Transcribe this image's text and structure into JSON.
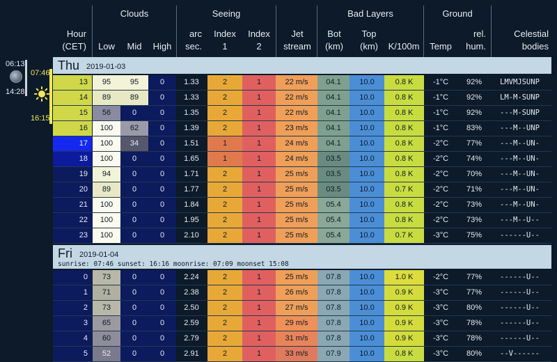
{
  "header": {
    "groups": {
      "clouds": "Clouds",
      "seeing": "Seeing",
      "bad_layers": "Bad Layers",
      "ground": "Ground"
    },
    "columns": {
      "hour": "Hour\n(CET)",
      "low": "Low",
      "mid": "Mid",
      "high": "High",
      "arcsec": "arc\nsec.",
      "index1": "Index\n1",
      "index2": "Index\n2",
      "jet": "Jet\nstream",
      "bot": "Bot\n(km)",
      "top": "Top\n(km)",
      "k100": "K/100m",
      "temp": "Temp",
      "hum": "rel.\nhum.",
      "celestial": "Celestial\nbodies"
    }
  },
  "sidebar": {
    "moonrise": "06:13",
    "moonset": "14:28",
    "sunrise": "07:46",
    "sunset": "16:15"
  },
  "days": [
    {
      "name": "Thu",
      "date": "2019-01-03",
      "info": "",
      "rows": [
        {
          "hour": "13",
          "low": "95",
          "mid": "95",
          "high": "0",
          "arcsec": "1.33",
          "idx1": "2",
          "idx2": "1",
          "jet": "22 m/s",
          "bot": "04.1",
          "top": "10.0",
          "k": "0.8 K",
          "temp": "-1°C",
          "hum": "92%",
          "cel": "LMVMJSUNP",
          "hourbg": "#d0d84a",
          "hourfg": "#0c1a29",
          "lowbg": "#f3f3d8",
          "midbg": "#f3f3d8",
          "highbg": "#0c1a5e",
          "arcbg": "#0c1a29",
          "i1bg": "#e8a838",
          "i2bg": "#e06060",
          "jetbg": "#ef9f58",
          "botbg": "#7fa08e",
          "topbg": "#4b8ed6",
          "kbg": "#c8dc40"
        },
        {
          "hour": "14",
          "low": "89",
          "mid": "89",
          "high": "0",
          "arcsec": "1.33",
          "idx1": "2",
          "idx2": "1",
          "jet": "22 m/s",
          "bot": "04.1",
          "top": "10.0",
          "k": "0.8 K",
          "temp": "-1°C",
          "hum": "92%",
          "cel": "LM-M-SUNP",
          "hourbg": "#d0d84a",
          "hourfg": "#0c1a29",
          "lowbg": "#e8e8c4",
          "midbg": "#e8e8c4",
          "highbg": "#0c1a5e",
          "arcbg": "#0c1a29",
          "i1bg": "#e8a838",
          "i2bg": "#e06060",
          "jetbg": "#ef9f58",
          "botbg": "#7fa08e",
          "topbg": "#4b8ed6",
          "kbg": "#c8dc40"
        },
        {
          "hour": "15",
          "low": "56",
          "mid": "0",
          "high": "0",
          "arcsec": "1.35",
          "idx1": "2",
          "idx2": "1",
          "jet": "22 m/s",
          "bot": "04.1",
          "top": "10.0",
          "k": "0.8 K",
          "temp": "-1°C",
          "hum": "92%",
          "cel": "---M-SUNP",
          "hourbg": "#d0d84a",
          "hourfg": "#0c1a29",
          "lowbg": "#8a8aa0",
          "midbg": "#0c1a5e",
          "highbg": "#0c1a5e",
          "arcbg": "#0c1a29",
          "i1bg": "#e8a838",
          "i2bg": "#e06060",
          "jetbg": "#ef9f58",
          "botbg": "#7fa08e",
          "topbg": "#4b8ed6",
          "kbg": "#c8dc40"
        },
        {
          "hour": "16",
          "low": "100",
          "mid": "62",
          "high": "0",
          "arcsec": "1.39",
          "idx1": "2",
          "idx2": "1",
          "jet": "23 m/s",
          "bot": "04.1",
          "top": "10.0",
          "k": "0.8 K",
          "temp": "-1°C",
          "hum": "83%",
          "cel": "---M--UNP",
          "hourbg": "#d0d84a",
          "hourfg": "#0c1a29",
          "lowbg": "#fafaee",
          "midbg": "#9a9aa8",
          "highbg": "#0c1a5e",
          "arcbg": "#0c1a29",
          "i1bg": "#e8a838",
          "i2bg": "#e06060",
          "jetbg": "#ef9f58",
          "botbg": "#7fa08e",
          "topbg": "#4b8ed6",
          "kbg": "#c8dc40"
        },
        {
          "hour": "17",
          "low": "100",
          "mid": "34",
          "high": "0",
          "arcsec": "1.51",
          "idx1": "1",
          "idx2": "1",
          "jet": "24 m/s",
          "bot": "04.1",
          "top": "10.0",
          "k": "0.8 K",
          "temp": "-2°C",
          "hum": "77%",
          "cel": "---M--UN-",
          "hourbg": "#1428f0",
          "hourfg": "#e6ecf2",
          "lowbg": "#fafaee",
          "midbg": "#56566e",
          "highbg": "#0c1a5e",
          "arcbg": "#0c1a29",
          "i1bg": "#e07a4c",
          "i2bg": "#e06060",
          "jetbg": "#ef9f58",
          "botbg": "#7fa08e",
          "topbg": "#4b8ed6",
          "kbg": "#c8dc40"
        },
        {
          "hour": "18",
          "low": "100",
          "mid": "0",
          "high": "0",
          "arcsec": "1.65",
          "idx1": "1",
          "idx2": "1",
          "jet": "24 m/s",
          "bot": "03.5",
          "top": "10.0",
          "k": "0.8 K",
          "temp": "-2°C",
          "hum": "74%",
          "cel": "---M--UN-",
          "hourbg": "#0c1a9c",
          "hourfg": "#e6ecf2",
          "lowbg": "#fafaee",
          "midbg": "#0c1a5e",
          "highbg": "#0c1a5e",
          "arcbg": "#0c1a29",
          "i1bg": "#e07a4c",
          "i2bg": "#e06060",
          "jetbg": "#ef9f58",
          "botbg": "#6a8c80",
          "topbg": "#4b8ed6",
          "kbg": "#c8dc40"
        },
        {
          "hour": "19",
          "low": "94",
          "mid": "0",
          "high": "0",
          "arcsec": "1.71",
          "idx1": "2",
          "idx2": "1",
          "jet": "25 m/s",
          "bot": "03.5",
          "top": "10.0",
          "k": "0.8 K",
          "temp": "-2°C",
          "hum": "70%",
          "cel": "---M--UN-",
          "hourbg": "#0c1a5e",
          "hourfg": "#e6ecf2",
          "lowbg": "#f3f3d8",
          "midbg": "#0c1a5e",
          "highbg": "#0c1a5e",
          "arcbg": "#0c1a29",
          "i1bg": "#e8a838",
          "i2bg": "#e06060",
          "jetbg": "#ef9f58",
          "botbg": "#6a8c80",
          "topbg": "#4b8ed6",
          "kbg": "#c8dc40"
        },
        {
          "hour": "20",
          "low": "89",
          "mid": "0",
          "high": "0",
          "arcsec": "1.77",
          "idx1": "2",
          "idx2": "1",
          "jet": "25 m/s",
          "bot": "03.5",
          "top": "10.0",
          "k": "0.7 K",
          "temp": "-2°C",
          "hum": "71%",
          "cel": "---M--UN-",
          "hourbg": "#0c1a5e",
          "hourfg": "#e6ecf2",
          "lowbg": "#e8e8c4",
          "midbg": "#0c1a5e",
          "highbg": "#0c1a5e",
          "arcbg": "#0c1a29",
          "i1bg": "#e8a838",
          "i2bg": "#e06060",
          "jetbg": "#ef9f58",
          "botbg": "#6a8c80",
          "topbg": "#4b8ed6",
          "kbg": "#c8dc40"
        },
        {
          "hour": "21",
          "low": "100",
          "mid": "0",
          "high": "0",
          "arcsec": "1.84",
          "idx1": "2",
          "idx2": "1",
          "jet": "25 m/s",
          "bot": "05.4",
          "top": "10.0",
          "k": "0.8 K",
          "temp": "-2°C",
          "hum": "73%",
          "cel": "---M--UN-",
          "hourbg": "#0c1a5e",
          "hourfg": "#e6ecf2",
          "lowbg": "#fafaee",
          "midbg": "#0c1a5e",
          "highbg": "#0c1a5e",
          "arcbg": "#0c1a29",
          "i1bg": "#e8a838",
          "i2bg": "#e06060",
          "jetbg": "#ef9f58",
          "botbg": "#8aa898",
          "topbg": "#4b8ed6",
          "kbg": "#c8dc40"
        },
        {
          "hour": "22",
          "low": "100",
          "mid": "0",
          "high": "0",
          "arcsec": "1.95",
          "idx1": "2",
          "idx2": "1",
          "jet": "25 m/s",
          "bot": "05.4",
          "top": "10.0",
          "k": "0.8 K",
          "temp": "-2°C",
          "hum": "73%",
          "cel": "---M--U--",
          "hourbg": "#0c1a5e",
          "hourfg": "#e6ecf2",
          "lowbg": "#fafaee",
          "midbg": "#0c1a5e",
          "highbg": "#0c1a5e",
          "arcbg": "#0c1a29",
          "i1bg": "#e8a838",
          "i2bg": "#e06060",
          "jetbg": "#ef9f58",
          "botbg": "#8aa898",
          "topbg": "#4b8ed6",
          "kbg": "#c8dc40"
        },
        {
          "hour": "23",
          "low": "100",
          "mid": "0",
          "high": "0",
          "arcsec": "2.10",
          "idx1": "2",
          "idx2": "1",
          "jet": "25 m/s",
          "bot": "05.4",
          "top": "10.0",
          "k": "0.7 K",
          "temp": "-3°C",
          "hum": "75%",
          "cel": "------U--",
          "hourbg": "#0c1a5e",
          "hourfg": "#e6ecf2",
          "lowbg": "#fafaee",
          "midbg": "#0c1a5e",
          "highbg": "#0c1a5e",
          "arcbg": "#0c1a29",
          "i1bg": "#e8a838",
          "i2bg": "#e06060",
          "jetbg": "#ef9f58",
          "botbg": "#8aa898",
          "topbg": "#4b8ed6",
          "kbg": "#c8dc40"
        }
      ]
    },
    {
      "name": "Fri",
      "date": "2019-01-04",
      "info": "sunrise: 07:46 sunset: 16:16 moonrise: 07:09 moonset 15:08",
      "rows": [
        {
          "hour": "0",
          "low": "73",
          "mid": "0",
          "high": "0",
          "arcsec": "2.24",
          "idx1": "2",
          "idx2": "1",
          "jet": "25 m/s",
          "bot": "07.8",
          "top": "10.0",
          "k": "1.0 K",
          "temp": "-2°C",
          "hum": "77%",
          "cel": "------U--",
          "hourbg": "#0c1a5e",
          "hourfg": "#e6ecf2",
          "lowbg": "#b8b8a8",
          "midbg": "#0c1a5e",
          "highbg": "#0c1a5e",
          "arcbg": "#0c1a29",
          "i1bg": "#e8a838",
          "i2bg": "#e06060",
          "jetbg": "#ef9f58",
          "botbg": "#8aa8b4",
          "topbg": "#4b8ed6",
          "kbg": "#dcdc3c"
        },
        {
          "hour": "1",
          "low": "71",
          "mid": "0",
          "high": "0",
          "arcsec": "2.38",
          "idx1": "2",
          "idx2": "1",
          "jet": "26 m/s",
          "bot": "07.8",
          "top": "10.0",
          "k": "0.9 K",
          "temp": "-3°C",
          "hum": "77%",
          "cel": "------U--",
          "hourbg": "#0c1a5e",
          "hourfg": "#e6ecf2",
          "lowbg": "#b0b0a0",
          "midbg": "#0c1a5e",
          "highbg": "#0c1a5e",
          "arcbg": "#0c1a29",
          "i1bg": "#e8a838",
          "i2bg": "#e06060",
          "jetbg": "#ef9f58",
          "botbg": "#8aa8b4",
          "topbg": "#4b8ed6",
          "kbg": "#d4dc3c"
        },
        {
          "hour": "2",
          "low": "73",
          "mid": "0",
          "high": "0",
          "arcsec": "2.50",
          "idx1": "2",
          "idx2": "1",
          "jet": "27 m/s",
          "bot": "07.8",
          "top": "10.0",
          "k": "0.9 K",
          "temp": "-3°C",
          "hum": "80%",
          "cel": "------U--",
          "hourbg": "#0c1a5e",
          "hourfg": "#e6ecf2",
          "lowbg": "#b8b8a8",
          "midbg": "#0c1a5e",
          "highbg": "#0c1a5e",
          "arcbg": "#0c1a29",
          "i1bg": "#e8a838",
          "i2bg": "#e06060",
          "jetbg": "#ef9f58",
          "botbg": "#8aa8b4",
          "topbg": "#4b8ed6",
          "kbg": "#d4dc3c"
        },
        {
          "hour": "3",
          "low": "65",
          "mid": "0",
          "high": "0",
          "arcsec": "2.59",
          "idx1": "2",
          "idx2": "1",
          "jet": "29 m/s",
          "bot": "07.8",
          "top": "10.0",
          "k": "0.9 K",
          "temp": "-3°C",
          "hum": "78%",
          "cel": "------U--",
          "hourbg": "#0c1a5e",
          "hourfg": "#e6ecf2",
          "lowbg": "#9a9aa0",
          "midbg": "#0c1a5e",
          "highbg": "#0c1a5e",
          "arcbg": "#0c1a29",
          "i1bg": "#e8a838",
          "i2bg": "#e06060",
          "jetbg": "#ef9058",
          "botbg": "#8aa8b4",
          "topbg": "#4b8ed6",
          "kbg": "#d4dc3c"
        },
        {
          "hour": "4",
          "low": "60",
          "mid": "0",
          "high": "0",
          "arcsec": "2.79",
          "idx1": "2",
          "idx2": "1",
          "jet": "31 m/s",
          "bot": "07.8",
          "top": "10.0",
          "k": "0.9 K",
          "temp": "-3°C",
          "hum": "78%",
          "cel": "------U--",
          "hourbg": "#0c1a5e",
          "hourfg": "#e6ecf2",
          "lowbg": "#8e8e9a",
          "midbg": "#0c1a5e",
          "highbg": "#0c1a5e",
          "arcbg": "#0c1a29",
          "i1bg": "#e8a838",
          "i2bg": "#e06060",
          "jetbg": "#e8845a",
          "botbg": "#8aa8b4",
          "topbg": "#4b8ed6",
          "kbg": "#d4dc3c"
        },
        {
          "hour": "5",
          "low": "52",
          "mid": "0",
          "high": "0",
          "arcsec": "2.91",
          "idx1": "2",
          "idx2": "1",
          "jet": "33 m/s",
          "bot": "07.9",
          "top": "10.0",
          "k": "0.8 K",
          "temp": "-3°C",
          "hum": "80%",
          "cel": "--V------",
          "hourbg": "#0c1a5e",
          "hourfg": "#e6ecf2",
          "lowbg": "#7a7a8c",
          "midbg": "#0c1a5e",
          "highbg": "#0c1a5e",
          "arcbg": "#0c1a29",
          "i1bg": "#e8a838",
          "i2bg": "#e06060",
          "jetbg": "#e07a5c",
          "botbg": "#8aa8b4",
          "topbg": "#4b8ed6",
          "kbg": "#c8dc40"
        }
      ]
    }
  ]
}
